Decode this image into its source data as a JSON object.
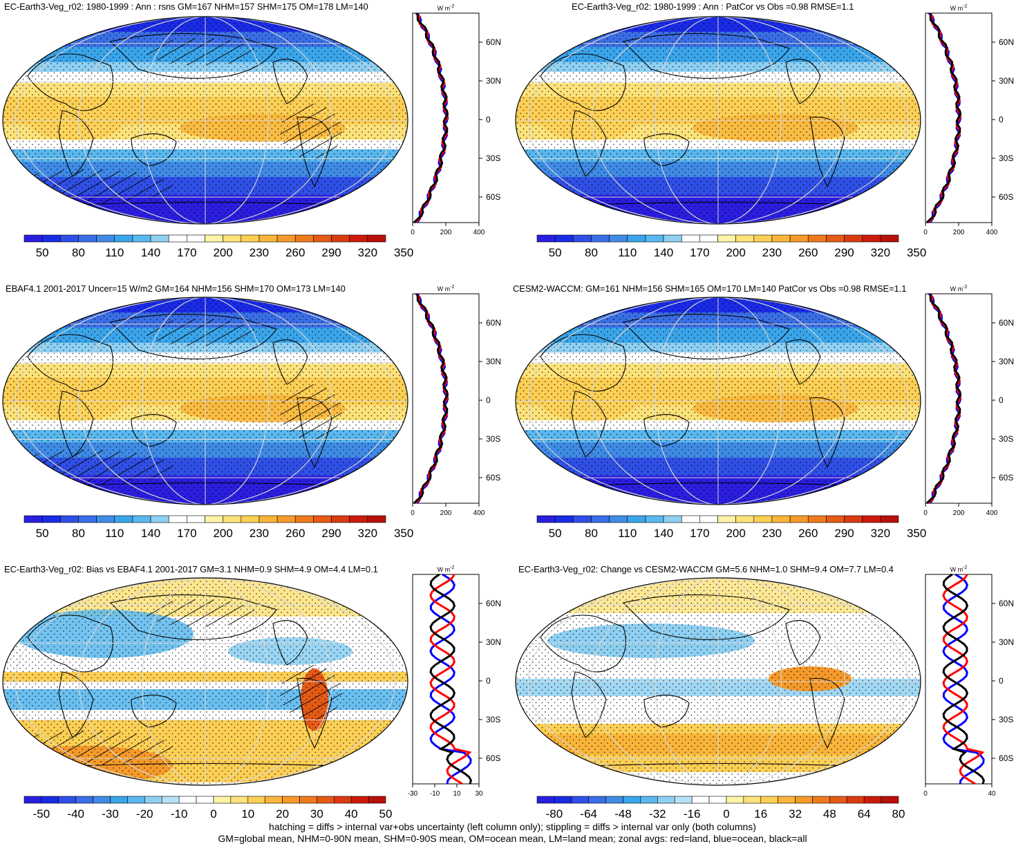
{
  "panels": [
    {
      "title": "EC-Earth3-Veg_r02: 1980-1999 : Ann : rsns GM=167 NHM=157 SHM=175 OM=178 LM=140",
      "kind": "mean",
      "hatching": true,
      "colorbar_labels": [
        "50",
        "80",
        "110",
        "140",
        "170",
        "200",
        "230",
        "260",
        "290",
        "320",
        "350"
      ],
      "zonal": {
        "units": "W m",
        "units_sup": "-2",
        "x_ticks": [
          "0",
          "200",
          "400"
        ],
        "lat_ticks": [
          "60N",
          "30N",
          "0",
          "30S",
          "60S"
        ]
      }
    },
    {
      "title": "EC-Earth3-Veg_r02: 1980-1999 : Ann : PatCor vs Obs =0.98 RMSE=1.1",
      "kind": "mean",
      "hatching": false,
      "colorbar_labels": [
        "50",
        "80",
        "110",
        "140",
        "170",
        "200",
        "230",
        "260",
        "290",
        "320",
        "350"
      ],
      "zonal": {
        "units": "W m",
        "units_sup": "-2",
        "x_ticks": [
          "0",
          "200",
          "400"
        ],
        "lat_ticks": [
          "60N",
          "30N",
          "0",
          "30S",
          "60S"
        ]
      }
    },
    {
      "title": "EBAF4.1 2001-2017 Uncer=15 W/m2 GM=164 NHM=156 SHM=170 OM=173 LM=140",
      "kind": "mean",
      "hatching": true,
      "colorbar_labels": [
        "50",
        "80",
        "110",
        "140",
        "170",
        "200",
        "230",
        "260",
        "290",
        "320",
        "350"
      ],
      "zonal": {
        "units": "W m",
        "units_sup": "-2",
        "x_ticks": [
          "0",
          "200",
          "400"
        ],
        "lat_ticks": [
          "60N",
          "30N",
          "0",
          "30S",
          "60S"
        ]
      }
    },
    {
      "title": "CESM2-WACCM: GM=161 NHM=156 SHM=165 OM=170 LM=140 PatCor vs Obs =0.98 RMSE=1.1",
      "kind": "mean",
      "hatching": false,
      "colorbar_labels": [
        "50",
        "80",
        "110",
        "140",
        "170",
        "200",
        "230",
        "260",
        "290",
        "320",
        "350"
      ],
      "zonal": {
        "units": "W m",
        "units_sup": "-2",
        "x_ticks": [
          "0",
          "200",
          "400"
        ],
        "lat_ticks": [
          "60N",
          "30N",
          "0",
          "30S",
          "60S"
        ]
      }
    },
    {
      "title": "EC-Earth3-Veg_r02: Bias vs EBAF4.1 2001-2017 GM=3.1 NHM=0.9 SHM=4.9 OM=4.4 LM=0.1",
      "kind": "bias",
      "hatching": true,
      "colorbar_labels": [
        "-50",
        "-40",
        "-30",
        "-20",
        "-10",
        "0",
        "10",
        "20",
        "30",
        "40",
        "50"
      ],
      "zonal": {
        "units": "W m",
        "units_sup": "-2",
        "x_ticks": [
          "-30",
          "-10",
          "10",
          "30"
        ],
        "lat_ticks": [
          "60N",
          "30N",
          "0",
          "30S",
          "60S"
        ]
      }
    },
    {
      "title": "EC-Earth3-Veg_r02: Change vs CESM2-WACCM GM=5.6 NHM=1.0 SHM=9.4 OM=7.7 LM=0.4",
      "kind": "change",
      "hatching": false,
      "colorbar_labels": [
        "-80",
        "-64",
        "-48",
        "-32",
        "-16",
        "0",
        "16",
        "32",
        "48",
        "64",
        "80"
      ],
      "zonal": {
        "units": "W m",
        "units_sup": "-2",
        "x_ticks": [
          "0",
          "40"
        ],
        "lat_ticks": [
          "60N",
          "30N",
          "0",
          "30S",
          "60S"
        ]
      }
    }
  ],
  "colors": {
    "mean_scale": [
      "#2a1ee0",
      "#1a2be6",
      "#2f4fe6",
      "#3a6ee6",
      "#3f8be6",
      "#3aa5ea",
      "#5ab8ee",
      "#8fd0f2",
      "#ffffff",
      "#ffffff",
      "#fff3a8",
      "#fde27a",
      "#fccf55",
      "#f9b53a",
      "#f59a2a",
      "#ef7a1e",
      "#e65a16",
      "#db3a10",
      "#cc1a0c",
      "#b8100a"
    ],
    "land_line": "#ff0000",
    "ocean_line": "#0000ff",
    "all_line": "#000000"
  },
  "footer": {
    "line1": "hatching = diffs > internal var+obs uncertainty (left column only); stippling = diffs > internal var only (both columns)",
    "line2": "GM=global mean, NHM=0-90N mean, SHM=0-90S mean, OM=ocean mean, LM=land mean; zonal avgs: red=land, blue=ocean, black=all"
  }
}
